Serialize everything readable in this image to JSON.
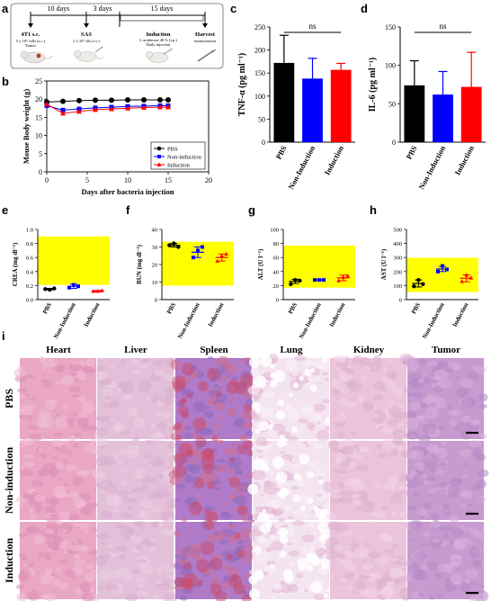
{
  "panels": {
    "a": "a",
    "b": "b",
    "c": "c",
    "d": "d",
    "e": "e",
    "f": "f",
    "g": "g",
    "h": "h",
    "i": "i"
  },
  "timeline": {
    "d1": "10 days",
    "d2": "3 days",
    "d3": "15 days",
    "s1_title": "4T1 s.c.",
    "s1_sub1": "5 x 10⁶ cells (s.c.)",
    "s1_sub2": "Tumor",
    "s2_title": "SAS",
    "s2_sub1": "2 x 10⁷ clls (i.v.)",
    "s3_title": "Induction",
    "s3_sub1": "L-arabinose 40 % (i.p.)",
    "s3_sub2": "Daily injection",
    "s4_title": "Harvest",
    "s4_sub1": "measurement"
  },
  "chart_data": [
    {
      "id": "b",
      "type": "line",
      "xlabel": "Days after bacteria injection",
      "ylabel": "Mouse Body weight (g)",
      "xlim": [
        0,
        20
      ],
      "ylim": [
        0,
        25
      ],
      "xticks": [
        "0",
        "5",
        "10",
        "15",
        "20"
      ],
      "yticks": [
        "0",
        "5",
        "10",
        "15",
        "20",
        "25"
      ],
      "x": [
        0,
        2,
        4,
        6,
        8,
        10,
        12,
        14,
        15
      ],
      "series": [
        {
          "name": "PBS",
          "color": "#000000",
          "marker": "circle",
          "values": [
            19.2,
            19.4,
            19.6,
            19.7,
            19.7,
            19.8,
            19.8,
            19.8,
            19.8
          ]
        },
        {
          "name": "Non-induction",
          "color": "#0000ff",
          "marker": "square",
          "values": [
            18.2,
            17.0,
            17.3,
            17.6,
            17.8,
            18.0,
            18.1,
            18.2,
            18.2
          ]
        },
        {
          "name": "Induction",
          "color": "#ff0000",
          "marker": "triangle",
          "values": [
            18.6,
            16.1,
            16.6,
            17.1,
            17.3,
            17.5,
            17.7,
            17.8,
            17.8
          ]
        }
      ]
    },
    {
      "id": "c",
      "type": "bar",
      "ylabel": "TNF-α (pg ml⁻¹)",
      "ylim": [
        0,
        250
      ],
      "yticks": [
        "0",
        "50",
        "100",
        "150",
        "200",
        "250"
      ],
      "categories": [
        "PBS",
        "Non-Induction",
        "Induction"
      ],
      "colors": [
        "#000000",
        "#0000ff",
        "#ff0000"
      ],
      "values": [
        172,
        138,
        157
      ],
      "errors": [
        60,
        44,
        14
      ],
      "significance": "ns"
    },
    {
      "id": "d",
      "type": "bar",
      "ylabel": "IL-6 (pg ml⁻¹)",
      "ylim": [
        0,
        150
      ],
      "yticks": [
        "0",
        "50",
        "100",
        "150"
      ],
      "categories": [
        "PBS",
        "Non-Induction",
        "Induction"
      ],
      "colors": [
        "#000000",
        "#0000ff",
        "#ff0000"
      ],
      "values": [
        74,
        62,
        72
      ],
      "errors": [
        32,
        30,
        45
      ],
      "significance": "ns"
    },
    {
      "id": "e",
      "type": "scatter",
      "ylabel": "CREA (mg dl⁻¹)",
      "ylim": [
        0,
        1.0
      ],
      "yticks": [
        "0.0",
        "0.2",
        "0.4",
        "0.6",
        "0.8",
        "1.0"
      ],
      "normal_range": [
        0.21,
        0.9
      ],
      "categories": [
        "PBS",
        "Non-Induction",
        "Induction"
      ],
      "colors": [
        "#000000",
        "#0000ff",
        "#ff0000"
      ],
      "points": [
        [
          0.15,
          0.14,
          0.16
        ],
        [
          0.17,
          0.21,
          0.19
        ],
        [
          0.12,
          0.12,
          0.13
        ]
      ],
      "means": [
        0.15,
        0.19,
        0.12
      ],
      "errors": [
        0.01,
        0.03,
        0.01
      ]
    },
    {
      "id": "f",
      "type": "scatter",
      "ylabel": "BUN (mg dl⁻¹)",
      "ylim": [
        0,
        40
      ],
      "yticks": [
        "0",
        "10",
        "20",
        "30",
        "40"
      ],
      "normal_range": [
        8,
        33
      ],
      "categories": [
        "PBS",
        "Non-Induction",
        "Induction"
      ],
      "colors": [
        "#000000",
        "#0000ff",
        "#ff0000"
      ],
      "points": [
        [
          31,
          32,
          30
        ],
        [
          24,
          28,
          30
        ],
        [
          22,
          25,
          26
        ]
      ],
      "means": [
        31,
        27,
        24
      ],
      "errors": [
        1,
        3,
        2
      ]
    },
    {
      "id": "g",
      "type": "scatter",
      "ylabel": "ALT (U l⁻¹)",
      "ylim": [
        0,
        100
      ],
      "yticks": [
        "0",
        "20",
        "40",
        "60",
        "80",
        "100"
      ],
      "normal_range": [
        17,
        77
      ],
      "categories": [
        "PBS",
        "Non-Induction",
        "Induction"
      ],
      "colors": [
        "#000000",
        "#0000ff",
        "#ff0000"
      ],
      "points": [
        [
          22,
          28,
          27
        ],
        [
          28,
          28,
          28
        ],
        [
          27,
          32,
          34
        ]
      ],
      "means": [
        26,
        28,
        31
      ],
      "errors": [
        3,
        0.5,
        4
      ]
    },
    {
      "id": "h",
      "type": "scatter",
      "ylabel": "AST (U l⁻¹)",
      "ylim": [
        0,
        500
      ],
      "yticks": [
        "0",
        "100",
        "200",
        "300",
        "400",
        "500"
      ],
      "normal_range": [
        54,
        298
      ],
      "categories": [
        "PBS",
        "Non-Induction",
        "Induction"
      ],
      "colors": [
        "#000000",
        "#0000ff",
        "#ff0000"
      ],
      "points": [
        [
          95,
          140,
          110
        ],
        [
          200,
          240,
          215
        ],
        [
          130,
          175,
          155
        ]
      ],
      "means": [
        115,
        218,
        152
      ],
      "errors": [
        25,
        18,
        25
      ]
    }
  ],
  "histology": {
    "columns": [
      "Heart",
      "Liver",
      "Spleen",
      "Lung",
      "Kidney",
      "Tumor"
    ],
    "rows": [
      "PBS",
      "Non-induction",
      "Induction"
    ]
  }
}
